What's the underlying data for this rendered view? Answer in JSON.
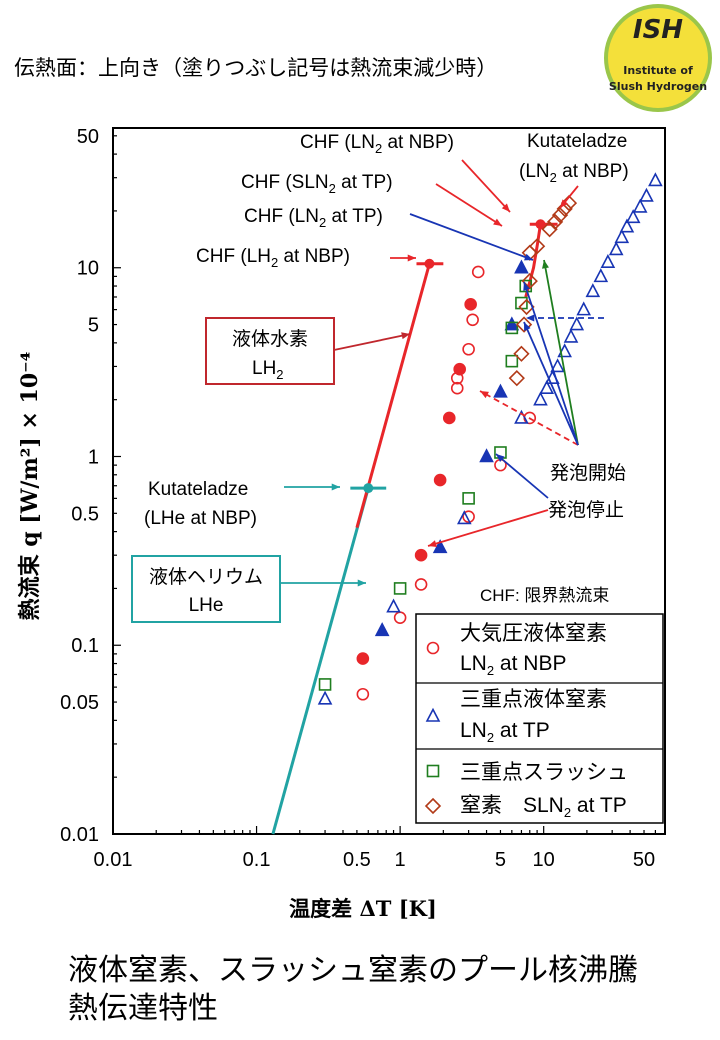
{
  "header": {
    "note": "伝熱面：上向き（塗りつぶし記号は熱流束減少時）"
  },
  "logo": {
    "title": "ISH",
    "line1": "Institute of",
    "line2": "Slush Hydrogen"
  },
  "caption": {
    "line1": "液体窒素、スラッシュ窒素のプール核沸騰",
    "line2": "熱伝達特性"
  },
  "chart_data": {
    "type": "scatter",
    "x_scale": "log",
    "y_scale": "log",
    "xlim": [
      0.01,
      70
    ],
    "ylim": [
      0.01,
      55
    ],
    "xlabel": "温度差 ΔT [K]",
    "ylabel": "熱流束 q [W/m²] × 10⁻⁴",
    "x_ticks": [
      "0.01",
      "0.1",
      "0.5",
      "1",
      "5",
      "10",
      "50"
    ],
    "y_ticks": [
      "0.01",
      "0.05",
      "0.1",
      "0.5",
      "1",
      "5",
      "10",
      "50"
    ],
    "chf_note": "CHF: 限界熱流束",
    "colors": {
      "red": "#e8262a",
      "blue": "#1835b4",
      "green": "#1f7e1f",
      "brown": "#b23a18",
      "teal": "#21a3a3",
      "darkred": "#c0272d"
    },
    "legend": [
      {
        "marker": "circle",
        "line1": "大気圧液体窒素",
        "line2": "LN",
        "sub": "2",
        "tail": " at NBP"
      },
      {
        "marker": "triangle",
        "line1": "三重点液体窒素",
        "line2": "LN",
        "sub": "2",
        "tail": " at TP"
      },
      {
        "marker": "square",
        "line1": "三重点スラッシュ",
        "line2": "",
        "sub": "",
        "tail": ""
      },
      {
        "marker": "diamond",
        "line1": "窒素　SLN",
        "line2": "",
        "sub": "2",
        "tail": " at TP"
      }
    ],
    "series": [
      {
        "name": "大気圧液体窒素 LN2 at NBP",
        "marker": "circle",
        "filled": false,
        "color": "#e8262a",
        "points": [
          [
            0.55,
            0.055
          ],
          [
            1.0,
            0.14
          ],
          [
            1.4,
            0.21
          ],
          [
            3.0,
            0.48
          ],
          [
            5.0,
            0.9
          ],
          [
            2.5,
            2.3
          ],
          [
            2.5,
            2.6
          ],
          [
            3.0,
            3.7
          ],
          [
            3.2,
            5.3
          ],
          [
            3.5,
            9.5
          ],
          [
            8.0,
            1.6
          ]
        ]
      },
      {
        "name": "大気圧液体窒素 LN2 at NBP (減少時)",
        "marker": "circle",
        "filled": true,
        "color": "#e8262a",
        "points": [
          [
            0.55,
            0.085
          ],
          [
            1.4,
            0.3
          ],
          [
            1.9,
            0.75
          ],
          [
            2.2,
            1.6
          ],
          [
            2.6,
            2.9
          ],
          [
            3.1,
            6.4
          ]
        ]
      },
      {
        "name": "三重点液体窒素 LN2 at TP",
        "marker": "triangle",
        "filled": false,
        "color": "#1835b4",
        "points": [
          [
            0.3,
            0.052
          ],
          [
            0.9,
            0.16
          ],
          [
            2.8,
            0.47
          ],
          [
            7.0,
            1.6
          ],
          [
            9.5,
            2.0
          ],
          [
            10.5,
            2.3
          ],
          [
            11.5,
            2.6
          ],
          [
            12.5,
            3.0
          ],
          [
            14.0,
            3.6
          ],
          [
            15.5,
            4.3
          ],
          [
            17.0,
            5.0
          ],
          [
            19.0,
            6.0
          ],
          [
            22.0,
            7.5
          ],
          [
            25.0,
            9.0
          ],
          [
            28.0,
            10.7
          ],
          [
            32.0,
            12.5
          ],
          [
            35.0,
            14.5
          ],
          [
            38.0,
            16.5
          ],
          [
            42.0,
            18.5
          ],
          [
            47.0,
            21.0
          ],
          [
            52.0,
            24.0
          ],
          [
            60.0,
            29.0
          ]
        ]
      },
      {
        "name": "三重点液体窒素 LN2 at TP (減少時)",
        "marker": "triangle",
        "filled": true,
        "color": "#1835b4",
        "points": [
          [
            0.75,
            0.12
          ],
          [
            1.9,
            0.33
          ],
          [
            4.0,
            1.0
          ],
          [
            5.0,
            2.2
          ],
          [
            6.0,
            5.0
          ],
          [
            7.0,
            10.0
          ]
        ]
      },
      {
        "name": "三重点スラッシュ窒素 SLN2 at TP",
        "marker": "square",
        "filled": false,
        "color": "#1f7e1f",
        "points": [
          [
            0.3,
            0.062
          ],
          [
            1.0,
            0.2
          ],
          [
            3.0,
            0.6
          ],
          [
            5.0,
            1.05
          ],
          [
            6.0,
            3.2
          ],
          [
            6.0,
            4.8
          ],
          [
            7.0,
            6.5
          ],
          [
            7.5,
            8.0
          ]
        ]
      },
      {
        "name": "窒素 SLN2 at TP",
        "marker": "diamond",
        "filled": false,
        "color": "#b23a18",
        "points": [
          [
            6.5,
            2.6
          ],
          [
            7.0,
            3.5
          ],
          [
            7.3,
            5.0
          ],
          [
            7.6,
            6.2
          ],
          [
            8.0,
            8.5
          ],
          [
            8.0,
            12.0
          ],
          [
            9.0,
            13.0
          ],
          [
            11.0,
            16.0
          ],
          [
            12.0,
            17.5
          ],
          [
            13.0,
            19.0
          ],
          [
            14.0,
            20.5
          ],
          [
            15.0,
            22.0
          ]
        ]
      }
    ],
    "lines": [
      {
        "name": "液体ヘリウム LHe",
        "color": "#21a3a3",
        "points": [
          [
            0.13,
            0.01
          ],
          [
            0.6,
            0.68
          ]
        ]
      },
      {
        "name": "液体水素 LH2",
        "color": "#e8262a",
        "points": [
          [
            0.5,
            0.42
          ],
          [
            1.6,
            10.5
          ]
        ]
      },
      {
        "name": "LN2 NBP curve",
        "color": "#e8262a",
        "points": [
          [
            7.5,
            7.0
          ],
          [
            8.5,
            10.0
          ],
          [
            9.0,
            13.0
          ],
          [
            9.5,
            17.0
          ]
        ]
      }
    ],
    "chf_points": [
      {
        "label": "Kutateladze (LHe at NBP)",
        "x": 0.6,
        "y": 0.68,
        "xerr": [
          0.45,
          0.8
        ],
        "color": "#21a3a3"
      },
      {
        "label": "CHF (LH2 at NBP)",
        "x": 1.6,
        "y": 10.5,
        "xerr": [
          1.3,
          2.0
        ],
        "color": "#e8262a"
      },
      {
        "label": "Kutateladze (LN2 at NBP)",
        "x": 9.5,
        "y": 17.0,
        "xerr": [
          8.0,
          12.5
        ],
        "color": "#e8262a"
      }
    ],
    "annotations": {
      "chf_ln2_nbp": {
        "pre": "CHF (LN",
        "sub": "2",
        "post": " at NBP)"
      },
      "chf_sln2_tp": {
        "pre": "CHF (SLN",
        "sub": "2",
        "post": " at TP)"
      },
      "chf_ln2_tp": {
        "pre": "CHF (LN",
        "sub": "2",
        "post": " at TP)"
      },
      "chf_lh2_nbp": {
        "pre": "CHF (LH",
        "sub": "2",
        "post": " at NBP)"
      },
      "kutateladze_ln2": {
        "line1": "Kutateladze",
        "pre": "(LN",
        "sub": "2",
        "post": " at NBP)"
      },
      "kutateladze_lhe": {
        "line1": "Kutateladze",
        "line2": "(LHe at NBP)"
      },
      "lh2_box": {
        "line1": "液体水素",
        "pre": "LH",
        "sub": "2",
        "post": ""
      },
      "lhe_box": {
        "line1": "液体ヘリウム",
        "line2": "LHe"
      },
      "boiling_start": "発泡開始",
      "boiling_stop": "発泡停止"
    }
  }
}
